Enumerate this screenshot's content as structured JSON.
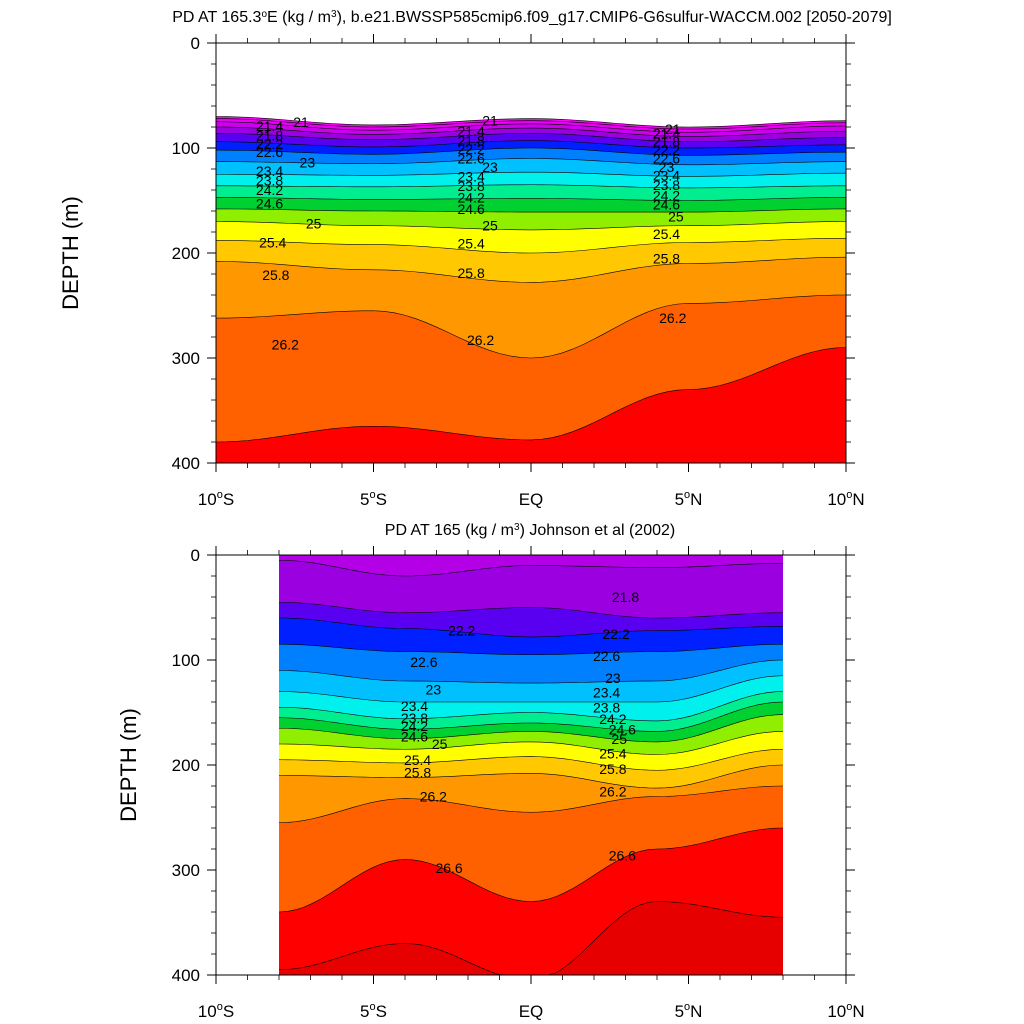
{
  "chart_data": [
    {
      "type": "contour",
      "title_prefix": "PD AT 165.3",
      "title_deg": "o",
      "title_mid": "E (kg / m",
      "title_sup": "3",
      "title_suffix": "), b.e21.BWSSP585cmip6.f09_g17.CMIP6-G6sulfur-WACCM.002 [2050-2079]",
      "ylabel": "DEPTH (m)",
      "xlim": [
        -10,
        10
      ],
      "ylim": [
        0,
        400
      ],
      "y_ticks": [
        "0",
        "100",
        "200",
        "300",
        "400"
      ],
      "x_ticks": [
        {
          "v": -10,
          "main": "10",
          "sup": "o",
          "suf": "S"
        },
        {
          "v": -5,
          "main": "5",
          "sup": "o",
          "suf": "S"
        },
        {
          "v": 0,
          "main": "EQ",
          "sup": "",
          "suf": ""
        },
        {
          "v": 5,
          "main": "5",
          "sup": "o",
          "suf": "N"
        },
        {
          "v": 10,
          "main": "10",
          "sup": "o",
          "suf": "N"
        }
      ],
      "data_xrange": [
        -10,
        10
      ],
      "levels": [
        20.6,
        20.8,
        21.0,
        21.2,
        21.4,
        21.6,
        21.8,
        22.0,
        22.2,
        22.4,
        22.6,
        22.8,
        23.0,
        23.2,
        23.4,
        23.6,
        23.8,
        24.0,
        24.2,
        24.4,
        24.6,
        24.8,
        25.0,
        25.2,
        25.4,
        25.6,
        25.8,
        26.0,
        26.2,
        26.4,
        26.6
      ],
      "x_nodes": [
        -10,
        -5,
        0,
        5,
        10
      ],
      "isopycnals": [
        {
          "level": 20.6,
          "depth": [
            70,
            78,
            72,
            80,
            74
          ]
        },
        {
          "level": 20.8,
          "depth": [
            72,
            80,
            74,
            82,
            76
          ]
        },
        {
          "level": 21.0,
          "depth": [
            75,
            83,
            77,
            85,
            79
          ]
        },
        {
          "level": 21.4,
          "depth": [
            80,
            87,
            81,
            89,
            84
          ]
        },
        {
          "level": 21.8,
          "depth": [
            86,
            92,
            86,
            94,
            90
          ]
        },
        {
          "level": 22.2,
          "depth": [
            94,
            99,
            93,
            100,
            97
          ]
        },
        {
          "level": 22.6,
          "depth": [
            102,
            106,
            100,
            107,
            104
          ]
        },
        {
          "level": 23.0,
          "depth": [
            113,
            115,
            110,
            116,
            113
          ]
        },
        {
          "level": 23.4,
          "depth": [
            125,
            126,
            123,
            127,
            124
          ]
        },
        {
          "level": 23.8,
          "depth": [
            136,
            137,
            135,
            138,
            136
          ]
        },
        {
          "level": 24.2,
          "depth": [
            147,
            149,
            148,
            150,
            147
          ]
        },
        {
          "level": 24.6,
          "depth": [
            158,
            160,
            161,
            161,
            158
          ]
        },
        {
          "level": 25.0,
          "depth": [
            170,
            174,
            178,
            174,
            170
          ]
        },
        {
          "level": 25.4,
          "depth": [
            188,
            192,
            200,
            190,
            186
          ]
        },
        {
          "level": 25.8,
          "depth": [
            208,
            216,
            228,
            210,
            204
          ]
        },
        {
          "level": 26.2,
          "depth": [
            262,
            255,
            300,
            248,
            240
          ]
        },
        {
          "level": 26.6,
          "depth": [
            380,
            365,
            378,
            330,
            290
          ]
        }
      ],
      "contour_labels": [
        {
          "t": "21",
          "x": -7.3,
          "d": 75
        },
        {
          "t": "21",
          "x": -1.3,
          "d": 74
        },
        {
          "t": "21",
          "x": 4.5,
          "d": 82
        },
        {
          "t": "21.4",
          "x": -8.3,
          "d": 79
        },
        {
          "t": "21.8",
          "x": -8.3,
          "d": 88
        },
        {
          "t": "22.2",
          "x": -8.3,
          "d": 96
        },
        {
          "t": "22.6",
          "x": -8.3,
          "d": 104
        },
        {
          "t": "23",
          "x": -7.1,
          "d": 114
        },
        {
          "t": "23.4",
          "x": -8.3,
          "d": 122
        },
        {
          "t": "23.8",
          "x": -8.3,
          "d": 131
        },
        {
          "t": "24.2",
          "x": -8.3,
          "d": 140
        },
        {
          "t": "24.6",
          "x": -8.3,
          "d": 153
        },
        {
          "t": "25",
          "x": -6.9,
          "d": 172
        },
        {
          "t": "25.4",
          "x": -8.2,
          "d": 190
        },
        {
          "t": "25.8",
          "x": -8.1,
          "d": 221
        },
        {
          "t": "26.2",
          "x": -7.8,
          "d": 287
        },
        {
          "t": "21.4",
          "x": -1.9,
          "d": 84
        },
        {
          "t": "21.8",
          "x": -1.9,
          "d": 93
        },
        {
          "t": "22.2",
          "x": -1.9,
          "d": 101
        },
        {
          "t": "22.6",
          "x": -1.9,
          "d": 110
        },
        {
          "t": "23",
          "x": -1.3,
          "d": 118
        },
        {
          "t": "23.4",
          "x": -1.9,
          "d": 127
        },
        {
          "t": "23.8",
          "x": -1.9,
          "d": 136
        },
        {
          "t": "24.2",
          "x": -1.9,
          "d": 147
        },
        {
          "t": "24.6",
          "x": -1.9,
          "d": 158
        },
        {
          "t": "25",
          "x": -1.3,
          "d": 174
        },
        {
          "t": "25.4",
          "x": -1.9,
          "d": 191
        },
        {
          "t": "25.8",
          "x": -1.9,
          "d": 219
        },
        {
          "t": "26.2",
          "x": -1.6,
          "d": 283
        },
        {
          "t": "21.4",
          "x": 4.3,
          "d": 86
        },
        {
          "t": "21.8",
          "x": 4.3,
          "d": 94
        },
        {
          "t": "22.2",
          "x": 4.3,
          "d": 102
        },
        {
          "t": "22.6",
          "x": 4.3,
          "d": 110
        },
        {
          "t": "23",
          "x": 4.3,
          "d": 118
        },
        {
          "t": "23.4",
          "x": 4.3,
          "d": 126
        },
        {
          "t": "23.8",
          "x": 4.3,
          "d": 135
        },
        {
          "t": "24.2",
          "x": 4.3,
          "d": 145
        },
        {
          "t": "24.6",
          "x": 4.3,
          "d": 154
        },
        {
          "t": "25",
          "x": 4.6,
          "d": 165
        },
        {
          "t": "25.4",
          "x": 4.3,
          "d": 182
        },
        {
          "t": "25.8",
          "x": 4.3,
          "d": 205
        },
        {
          "t": "26.2",
          "x": 4.5,
          "d": 262
        }
      ]
    },
    {
      "type": "contour",
      "title_prefix": "PD AT 165",
      "title_deg": "",
      "title_mid": " (kg / m",
      "title_sup": "3",
      "title_suffix": ") Johnson et al (2002)",
      "ylabel": "DEPTH (m)",
      "xlim": [
        -10,
        10
      ],
      "ylim": [
        0,
        400
      ],
      "y_ticks": [
        "0",
        "100",
        "200",
        "300",
        "400"
      ],
      "x_ticks": [
        {
          "v": -10,
          "main": "10",
          "sup": "o",
          "suf": "S"
        },
        {
          "v": -5,
          "main": "5",
          "sup": "o",
          "suf": "S"
        },
        {
          "v": 0,
          "main": "EQ",
          "sup": "",
          "suf": ""
        },
        {
          "v": 5,
          "main": "5",
          "sup": "o",
          "suf": "N"
        },
        {
          "v": 10,
          "main": "10",
          "sup": "o",
          "suf": "N"
        }
      ],
      "data_xrange": [
        -8,
        8
      ],
      "levels": [
        20.6,
        20.8,
        21.0,
        21.2,
        21.4,
        21.6,
        21.8,
        22.0,
        22.2,
        22.4,
        22.6,
        22.8,
        23.0,
        23.2,
        23.4,
        23.6,
        23.8,
        24.0,
        24.2,
        24.4,
        24.6,
        24.8,
        25.0,
        25.2,
        25.4,
        25.6,
        25.8,
        26.0,
        26.2,
        26.4,
        26.6,
        26.8
      ],
      "x_nodes": [
        -8,
        -4,
        0,
        4,
        8
      ],
      "isopycnals": [
        {
          "level": 21.4,
          "depth": [
            5,
            20,
            10,
            12,
            8
          ]
        },
        {
          "level": 21.8,
          "depth": [
            45,
            55,
            50,
            60,
            55
          ]
        },
        {
          "level": 22.2,
          "depth": [
            60,
            70,
            78,
            72,
            68
          ]
        },
        {
          "level": 22.6,
          "depth": [
            85,
            92,
            95,
            92,
            85
          ]
        },
        {
          "level": 23.0,
          "depth": [
            110,
            120,
            122,
            120,
            100
          ]
        },
        {
          "level": 23.4,
          "depth": [
            130,
            140,
            140,
            140,
            115
          ]
        },
        {
          "level": 23.8,
          "depth": [
            145,
            156,
            150,
            158,
            130
          ]
        },
        {
          "level": 24.2,
          "depth": [
            155,
            166,
            160,
            168,
            140
          ]
        },
        {
          "level": 24.6,
          "depth": [
            165,
            175,
            168,
            178,
            152
          ]
        },
        {
          "level": 25.0,
          "depth": [
            180,
            185,
            178,
            190,
            168
          ]
        },
        {
          "level": 25.4,
          "depth": [
            195,
            198,
            192,
            205,
            185
          ]
        },
        {
          "level": 25.8,
          "depth": [
            210,
            212,
            208,
            222,
            200
          ]
        },
        {
          "level": 26.2,
          "depth": [
            255,
            232,
            245,
            230,
            220
          ]
        },
        {
          "level": 26.6,
          "depth": [
            340,
            290,
            330,
            280,
            260
          ]
        },
        {
          "level": 26.8,
          "depth": [
            395,
            370,
            405,
            330,
            345
          ]
        }
      ],
      "contour_labels": [
        {
          "t": "21.8",
          "x": 3.0,
          "d": 40
        },
        {
          "t": "22.2",
          "x": -2.2,
          "d": 72
        },
        {
          "t": "22.2",
          "x": 2.7,
          "d": 75
        },
        {
          "t": "22.6",
          "x": -3.4,
          "d": 102
        },
        {
          "t": "22.6",
          "x": 2.4,
          "d": 96
        },
        {
          "t": "23",
          "x": -3.1,
          "d": 128
        },
        {
          "t": "23",
          "x": 2.6,
          "d": 117
        },
        {
          "t": "23.4",
          "x": -3.7,
          "d": 144
        },
        {
          "t": "23.4",
          "x": 2.4,
          "d": 131
        },
        {
          "t": "23.8",
          "x": -3.7,
          "d": 155
        },
        {
          "t": "23.8",
          "x": 2.4,
          "d": 145
        },
        {
          "t": "24.2",
          "x": -3.7,
          "d": 163
        },
        {
          "t": "24.2",
          "x": 2.6,
          "d": 156
        },
        {
          "t": "24.6",
          "x": -3.7,
          "d": 173
        },
        {
          "t": "24.6",
          "x": 2.9,
          "d": 166
        },
        {
          "t": "25",
          "x": -2.9,
          "d": 180
        },
        {
          "t": "25",
          "x": 2.8,
          "d": 175
        },
        {
          "t": "25.4",
          "x": -3.6,
          "d": 195
        },
        {
          "t": "25.4",
          "x": 2.6,
          "d": 189
        },
        {
          "t": "25.8",
          "x": -3.6,
          "d": 207
        },
        {
          "t": "25.8",
          "x": 2.6,
          "d": 204
        },
        {
          "t": "26.2",
          "x": -3.1,
          "d": 230
        },
        {
          "t": "26.2",
          "x": 2.6,
          "d": 225
        },
        {
          "t": "26.6",
          "x": -2.6,
          "d": 298
        },
        {
          "t": "26.6",
          "x": 2.9,
          "d": 286
        }
      ]
    }
  ]
}
